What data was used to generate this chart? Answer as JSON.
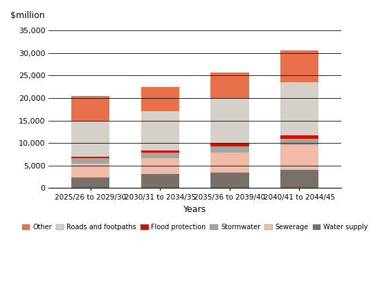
{
  "categories": [
    "2025/26 to 2029/30",
    "2030/31 to 2034/35",
    "2035/36 to 2039/40",
    "2040/41 to 2044/45"
  ],
  "series": {
    "Water supply": [
      2400,
      3100,
      3400,
      4000
    ],
    "Sewerage": [
      3000,
      3500,
      4500,
      5500
    ],
    "Stormwater": [
      1200,
      1300,
      1400,
      1500
    ],
    "Flood protection": [
      300,
      400,
      500,
      700
    ],
    "Roads and footpaths": [
      8100,
      8700,
      10100,
      11800
    ],
    "Other": [
      5500,
      5500,
      5800,
      7000
    ]
  },
  "colors": {
    "Other": "#E8704A",
    "Roads and footpaths": "#D5D0CA",
    "Flood protection": "#CC1100",
    "Stormwater": "#A8A49F",
    "Sewerage": "#F2BBA8",
    "Water supply": "#7A706A"
  },
  "legend_order": [
    "Other",
    "Roads and footpaths",
    "Flood protection",
    "Stormwater",
    "Sewerage",
    "Water supply"
  ],
  "ylabel": "$million",
  "xlabel": "Years",
  "ylim": [
    0,
    37000
  ],
  "yticks": [
    0,
    5000,
    10000,
    15000,
    20000,
    25000,
    30000,
    35000
  ],
  "ytick_labels": [
    "0",
    "5,000",
    "10,000",
    "15,000",
    "20,000",
    "25,000",
    "30,000",
    "35,000"
  ],
  "bar_width": 0.55,
  "background_color": "#FFFFFF",
  "figsize": [
    5.49,
    4.07
  ],
  "dpi": 100
}
